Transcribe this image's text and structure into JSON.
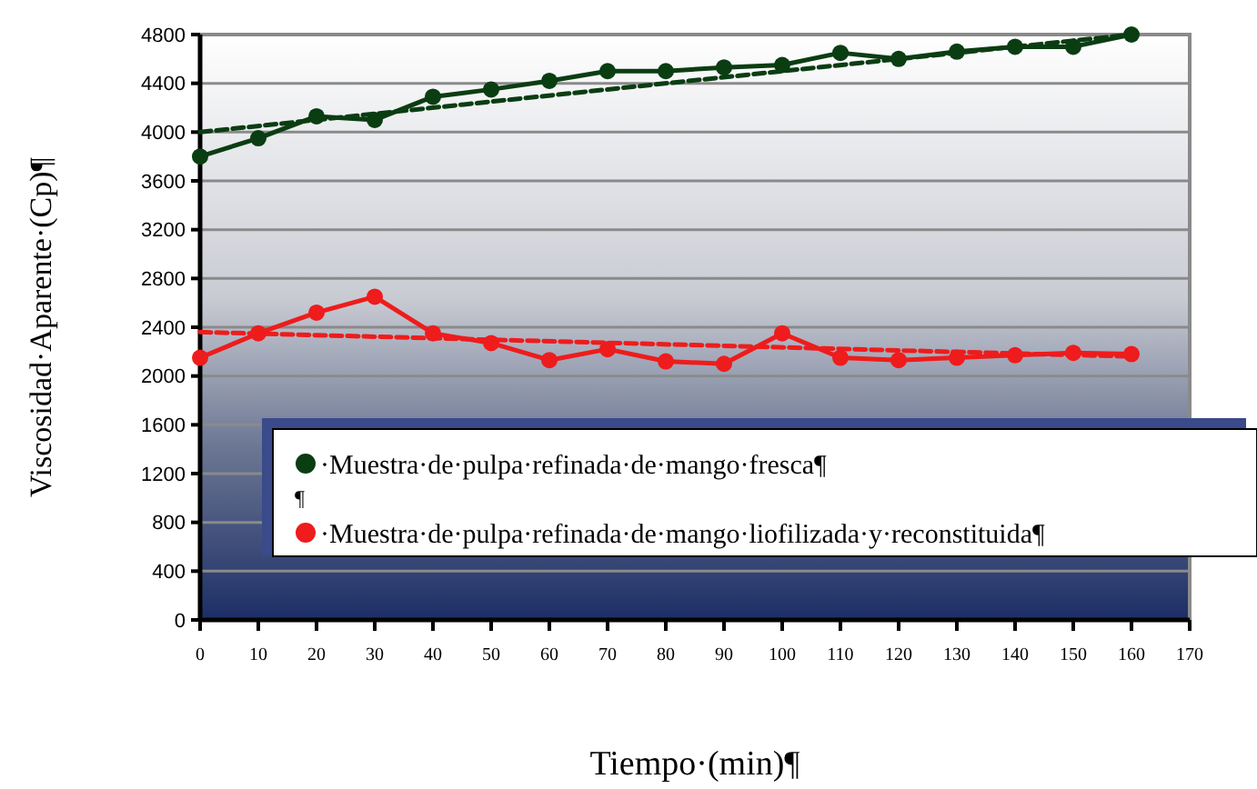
{
  "chart_data": {
    "type": "line",
    "xlabel": "Tiempo·(min)¶",
    "ylabel": "Viscosidad·Aparente·(Cp)¶",
    "x": [
      0,
      10,
      20,
      30,
      40,
      50,
      60,
      70,
      80,
      90,
      100,
      110,
      120,
      130,
      140,
      150,
      160
    ],
    "xlim": [
      0,
      170
    ],
    "xticks": [
      0,
      10,
      20,
      30,
      40,
      50,
      60,
      70,
      80,
      90,
      100,
      110,
      120,
      130,
      140,
      150,
      160,
      170
    ],
    "ylim": [
      0,
      4800
    ],
    "yticks": [
      0,
      400,
      800,
      1200,
      1600,
      2000,
      2400,
      2800,
      3200,
      3600,
      4000,
      4400,
      4800
    ],
    "grid": "y",
    "legend": "bottom right",
    "marker": "circle",
    "line_style": "solid",
    "annotations": [
      "¶"
    ],
    "series": [
      {
        "name": "·Muestra·de·pulpa·refinada·de·mango·fresca¶",
        "color": "#0b3d12",
        "values": [
          3800,
          3950,
          4130,
          4100,
          4290,
          4350,
          4420,
          4500,
          4500,
          4530,
          4550,
          4650,
          4600,
          4660,
          4700,
          4700,
          4800
        ]
      },
      {
        "name": "·Muestra·de·pulpa·refinada·de·mango·liofilizada·y·reconstituida¶",
        "color": "#ee1c1c",
        "values": [
          2150,
          2350,
          2520,
          2650,
          2350,
          2270,
          2130,
          2220,
          2120,
          2100,
          2350,
          2150,
          2130,
          2150,
          2170,
          2190,
          2180
        ]
      },
      {
        "type": "line",
        "color": "#0b3d12",
        "values": [
          4000,
          null,
          null,
          null,
          null,
          null,
          null,
          null,
          null,
          null,
          null,
          null,
          null,
          null,
          null,
          null,
          4800
        ],
        "line_style": "dashed",
        "marker": "none"
      },
      {
        "type": "line",
        "color": "#ee1c1c",
        "values": [
          2360,
          null,
          null,
          null,
          null,
          null,
          null,
          null,
          null,
          null,
          null,
          null,
          null,
          null,
          null,
          null,
          2160
        ],
        "line_style": "dashed",
        "marker": "none"
      }
    ]
  }
}
